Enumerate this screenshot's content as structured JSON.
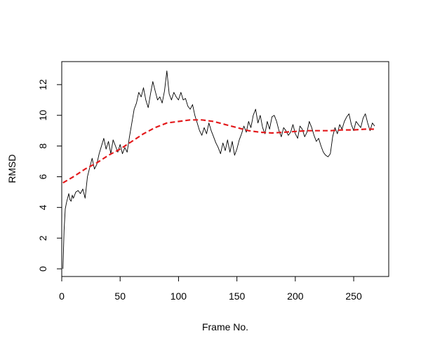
{
  "chart_data": {
    "type": "line",
    "title": "",
    "xlabel": "Frame No.",
    "ylabel": "RMSD",
    "xlim": [
      0,
      280
    ],
    "ylim": [
      -0.5,
      13.5
    ],
    "xticks": [
      0,
      50,
      100,
      150,
      200,
      250
    ],
    "yticks": [
      0,
      2,
      4,
      6,
      8,
      10,
      12
    ],
    "grid": false,
    "legend": "none",
    "series": [
      {
        "style": "solid",
        "color": "#000000",
        "points": [
          [
            1,
            0.0
          ],
          [
            2,
            2.5
          ],
          [
            3,
            3.9
          ],
          [
            4,
            4.3
          ],
          [
            5,
            4.6
          ],
          [
            6,
            4.9
          ],
          [
            7,
            4.5
          ],
          [
            8,
            4.4
          ],
          [
            9,
            4.8
          ],
          [
            10,
            4.6
          ],
          [
            12,
            5.0
          ],
          [
            14,
            5.1
          ],
          [
            16,
            4.9
          ],
          [
            18,
            5.2
          ],
          [
            20,
            4.6
          ],
          [
            22,
            6.0
          ],
          [
            24,
            6.6
          ],
          [
            26,
            7.2
          ],
          [
            28,
            6.5
          ],
          [
            30,
            6.8
          ],
          [
            32,
            7.5
          ],
          [
            34,
            8.0
          ],
          [
            36,
            8.5
          ],
          [
            38,
            7.8
          ],
          [
            40,
            8.3
          ],
          [
            42,
            7.5
          ],
          [
            44,
            8.4
          ],
          [
            46,
            8.0
          ],
          [
            48,
            7.6
          ],
          [
            50,
            8.1
          ],
          [
            52,
            7.5
          ],
          [
            54,
            7.9
          ],
          [
            56,
            7.6
          ],
          [
            58,
            8.6
          ],
          [
            60,
            9.5
          ],
          [
            62,
            10.4
          ],
          [
            64,
            10.8
          ],
          [
            66,
            11.5
          ],
          [
            68,
            11.2
          ],
          [
            70,
            11.8
          ],
          [
            72,
            11.0
          ],
          [
            74,
            10.5
          ],
          [
            76,
            11.4
          ],
          [
            78,
            12.2
          ],
          [
            80,
            11.6
          ],
          [
            82,
            11.0
          ],
          [
            84,
            11.2
          ],
          [
            86,
            10.8
          ],
          [
            88,
            11.6
          ],
          [
            90,
            12.9
          ],
          [
            92,
            11.4
          ],
          [
            94,
            11.0
          ],
          [
            96,
            11.5
          ],
          [
            98,
            11.2
          ],
          [
            100,
            11.0
          ],
          [
            102,
            11.5
          ],
          [
            104,
            11.0
          ],
          [
            106,
            11.1
          ],
          [
            108,
            10.6
          ],
          [
            110,
            10.4
          ],
          [
            112,
            10.7
          ],
          [
            114,
            10.0
          ],
          [
            116,
            9.5
          ],
          [
            118,
            9.0
          ],
          [
            120,
            8.7
          ],
          [
            122,
            9.2
          ],
          [
            124,
            8.8
          ],
          [
            126,
            9.5
          ],
          [
            128,
            9.0
          ],
          [
            130,
            8.6
          ],
          [
            132,
            8.2
          ],
          [
            134,
            7.9
          ],
          [
            136,
            7.5
          ],
          [
            138,
            8.2
          ],
          [
            140,
            7.7
          ],
          [
            142,
            8.4
          ],
          [
            144,
            7.6
          ],
          [
            146,
            8.3
          ],
          [
            148,
            7.4
          ],
          [
            150,
            7.8
          ],
          [
            152,
            8.4
          ],
          [
            154,
            8.8
          ],
          [
            156,
            9.3
          ],
          [
            158,
            8.9
          ],
          [
            160,
            9.6
          ],
          [
            162,
            9.2
          ],
          [
            164,
            10.0
          ],
          [
            166,
            10.4
          ],
          [
            168,
            9.5
          ],
          [
            170,
            10.0
          ],
          [
            172,
            9.2
          ],
          [
            174,
            8.8
          ],
          [
            176,
            9.6
          ],
          [
            178,
            9.1
          ],
          [
            180,
            9.9
          ],
          [
            182,
            10.0
          ],
          [
            184,
            9.6
          ],
          [
            186,
            9.0
          ],
          [
            188,
            8.6
          ],
          [
            190,
            9.2
          ],
          [
            192,
            9.0
          ],
          [
            194,
            8.7
          ],
          [
            196,
            8.9
          ],
          [
            198,
            9.4
          ],
          [
            200,
            8.8
          ],
          [
            202,
            8.5
          ],
          [
            204,
            9.3
          ],
          [
            206,
            9.1
          ],
          [
            208,
            8.6
          ],
          [
            210,
            8.9
          ],
          [
            212,
            9.6
          ],
          [
            214,
            9.2
          ],
          [
            216,
            8.7
          ],
          [
            218,
            8.3
          ],
          [
            220,
            8.5
          ],
          [
            222,
            8.0
          ],
          [
            224,
            7.6
          ],
          [
            226,
            7.4
          ],
          [
            228,
            7.3
          ],
          [
            230,
            7.5
          ],
          [
            232,
            8.6
          ],
          [
            234,
            9.2
          ],
          [
            236,
            8.8
          ],
          [
            238,
            9.4
          ],
          [
            240,
            9.1
          ],
          [
            242,
            9.6
          ],
          [
            244,
            9.9
          ],
          [
            246,
            10.1
          ],
          [
            248,
            9.4
          ],
          [
            250,
            9.0
          ],
          [
            252,
            9.6
          ],
          [
            254,
            9.4
          ],
          [
            256,
            9.2
          ],
          [
            258,
            9.8
          ],
          [
            260,
            10.1
          ],
          [
            262,
            9.5
          ],
          [
            264,
            9.0
          ],
          [
            266,
            9.5
          ],
          [
            268,
            9.3
          ]
        ]
      },
      {
        "style": "dashed",
        "color": "#e31a1c",
        "points": [
          [
            1,
            5.6
          ],
          [
            10,
            6.0
          ],
          [
            20,
            6.5
          ],
          [
            30,
            6.9
          ],
          [
            40,
            7.4
          ],
          [
            50,
            7.8
          ],
          [
            60,
            8.3
          ],
          [
            70,
            8.8
          ],
          [
            80,
            9.2
          ],
          [
            90,
            9.5
          ],
          [
            100,
            9.6
          ],
          [
            110,
            9.7
          ],
          [
            120,
            9.7
          ],
          [
            130,
            9.6
          ],
          [
            140,
            9.4
          ],
          [
            150,
            9.2
          ],
          [
            160,
            9.0
          ],
          [
            170,
            8.9
          ],
          [
            180,
            8.85
          ],
          [
            190,
            8.9
          ],
          [
            200,
            8.95
          ],
          [
            210,
            9.0
          ],
          [
            220,
            9.0
          ],
          [
            230,
            9.0
          ],
          [
            240,
            9.05
          ],
          [
            250,
            9.05
          ],
          [
            260,
            9.1
          ],
          [
            268,
            9.1
          ]
        ]
      }
    ]
  }
}
